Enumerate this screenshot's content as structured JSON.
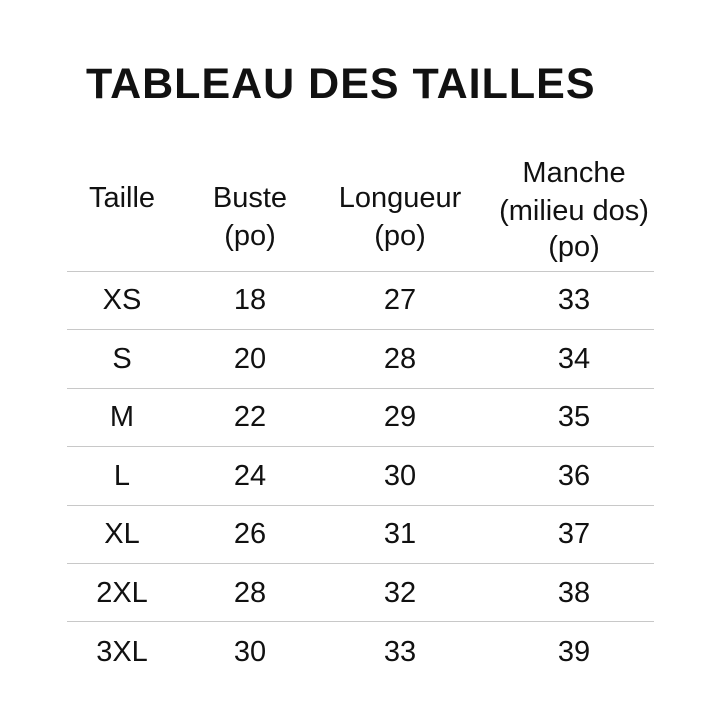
{
  "title": "TABLEAU DES TAILLES",
  "headers": [
    [
      "Taille"
    ],
    [
      "Buste",
      "(po)"
    ],
    [
      "Longueur",
      "(po)"
    ],
    [
      "Manche",
      "(milieu dos)",
      "(po)"
    ]
  ],
  "rows": [
    [
      "XS",
      "18",
      "27",
      "33"
    ],
    [
      "S",
      "20",
      "28",
      "34"
    ],
    [
      "M",
      "22",
      "29",
      "35"
    ],
    [
      "L",
      "24",
      "30",
      "36"
    ],
    [
      "XL",
      "26",
      "31",
      "37"
    ],
    [
      "2XL",
      "28",
      "32",
      "38"
    ],
    [
      "3XL",
      "30",
      "33",
      "39"
    ]
  ]
}
